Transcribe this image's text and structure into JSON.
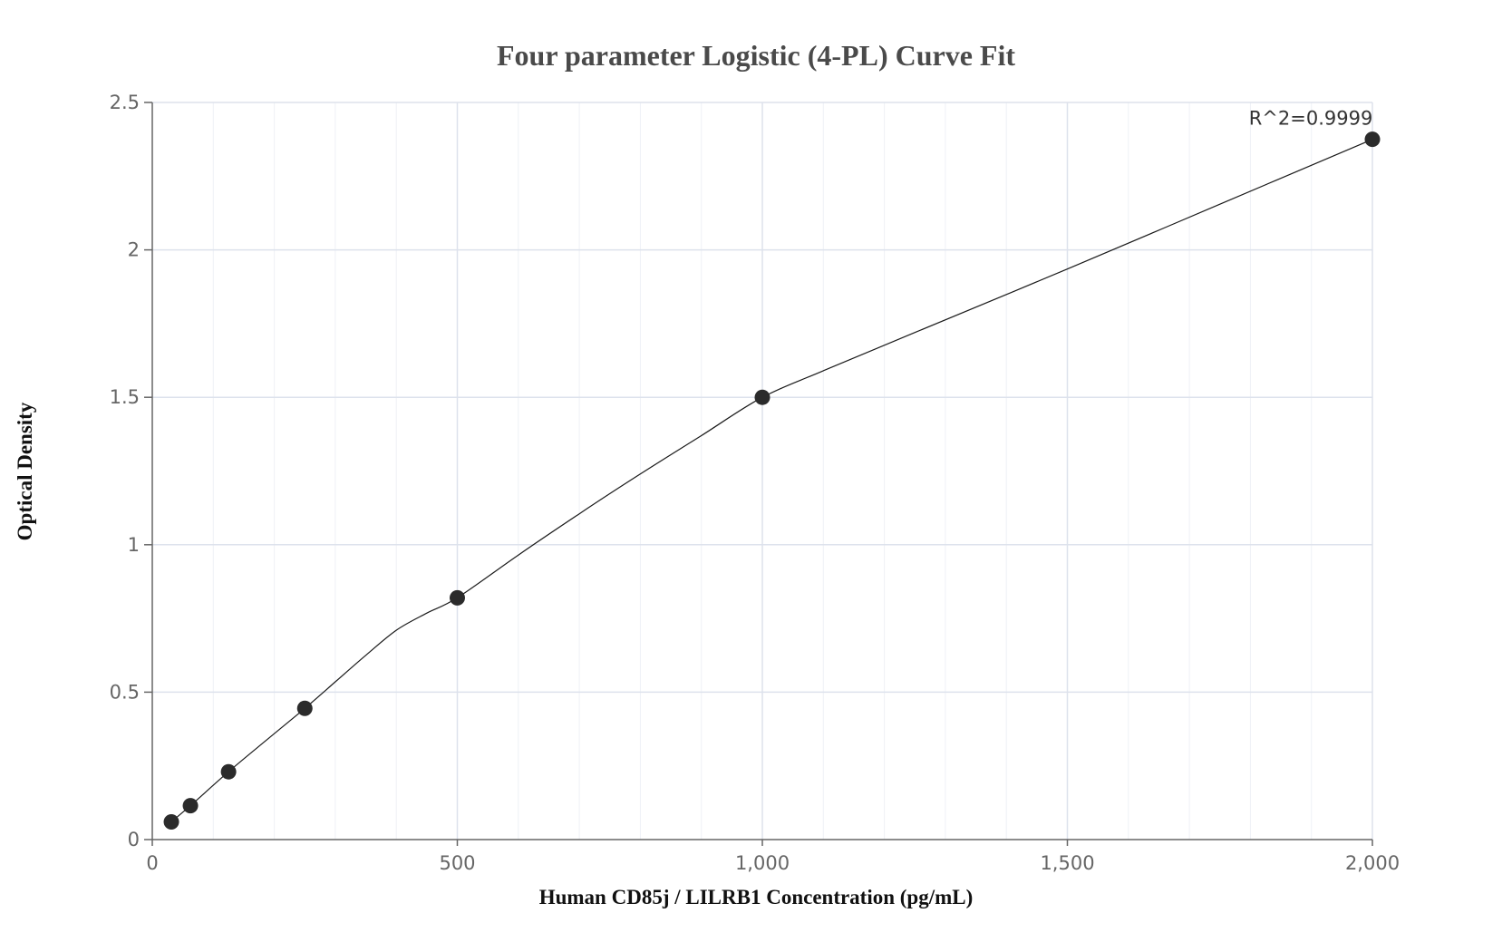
{
  "chart_data": {
    "type": "scatter",
    "title": "Four parameter Logistic (4-PL) Curve Fit",
    "xlabel": "Human CD85j / LILRB1 Concentration (pg/mL)",
    "ylabel": "Optical Density",
    "xlim": [
      0,
      2000
    ],
    "ylim": [
      0,
      2.5
    ],
    "x_ticks": [
      0,
      500,
      1000,
      1500,
      2000
    ],
    "x_tick_labels": [
      "0",
      "500",
      "1,000",
      "1,500",
      "2,000"
    ],
    "y_ticks": [
      0,
      0.5,
      1,
      1.5,
      2,
      2.5
    ],
    "y_tick_labels": [
      "0",
      "0.5",
      "1",
      "1.5",
      "2",
      "2.5"
    ],
    "grid": true,
    "minor_grid": true,
    "series": [
      {
        "x": [
          31.25,
          62.5,
          125,
          250,
          500,
          1000,
          2000
        ],
        "y": [
          0.06,
          0.115,
          0.23,
          0.445,
          0.82,
          1.5,
          2.375
        ]
      }
    ],
    "fit_curve": {
      "model": "4-PL",
      "x": [
        31.25,
        62.5,
        125,
        187.5,
        250,
        300,
        350,
        400,
        450,
        500,
        600,
        700,
        800,
        900,
        1000,
        1100,
        1250,
        1500,
        1750,
        2000
      ],
      "y": [
        0.06,
        0.115,
        0.23,
        0.338,
        0.445,
        0.535,
        0.625,
        0.71,
        0.768,
        0.82,
        0.965,
        1.105,
        1.24,
        1.37,
        1.5,
        1.59,
        1.72,
        1.935,
        2.155,
        2.375
      ]
    },
    "annotations": [
      {
        "text": "R^2=0.9999",
        "x": 2000,
        "y": 2.375
      }
    ],
    "colors": {
      "marker": "#2b2b2b",
      "curve": "#1a1a1a",
      "grid_major": "#dde2ec",
      "grid_minor": "#eef1f6",
      "axis": "#666666"
    }
  }
}
